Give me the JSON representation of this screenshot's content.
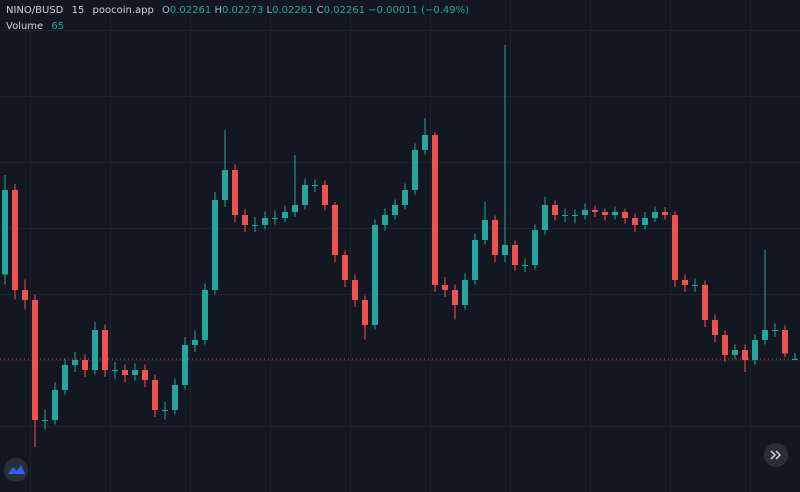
{
  "chart_data": {
    "type": "candlestick",
    "symbol": "NINO/BUSD",
    "interval": 15,
    "source": "poocoin.app",
    "legend": {
      "o_label": "O",
      "o": 0.02261,
      "h_label": "H",
      "h": 0.02273,
      "l_label": "L",
      "l": 0.02261,
      "c_label": "C",
      "c": 0.02261,
      "change": "−0.00011",
      "change_pct": "(−0.49%)"
    },
    "volume_label": "Volume",
    "volume": 65,
    "up_color": "#26a69a",
    "down_color": "#ef5350",
    "ylim": [
      0.01995,
      0.02979
    ],
    "open": [
      0.0243,
      0.02599,
      0.02399,
      0.02379,
      0.02139,
      0.02139,
      0.02199,
      0.02249,
      0.02259,
      0.02239,
      0.02319,
      0.02239,
      0.02239,
      0.02229,
      0.02239,
      0.02219,
      0.02159,
      0.02159,
      0.02209,
      0.02289,
      0.02299,
      0.02399,
      0.02579,
      0.02639,
      0.02549,
      0.02529,
      0.02529,
      0.02543,
      0.02543,
      0.02555,
      0.02569,
      0.02609,
      0.02609,
      0.02569,
      0.02469,
      0.02419,
      0.02379,
      0.02329,
      0.02529,
      0.02549,
      0.02569,
      0.02599,
      0.02679,
      0.02709,
      0.02409,
      0.02399,
      0.02369,
      0.02419,
      0.02499,
      0.02539,
      0.02469,
      0.02489,
      0.02449,
      0.02449,
      0.02519,
      0.02569,
      0.02549,
      0.02549,
      0.02549,
      0.02559,
      0.02555,
      0.02549,
      0.02555,
      0.02543,
      0.02529,
      0.02543,
      0.02555,
      0.02549,
      0.02419,
      0.02409,
      0.02409,
      0.02339,
      0.02309,
      0.02269,
      0.02279,
      0.02259,
      0.02299,
      0.02319,
      0.02319,
      0.02261
    ],
    "high": [
      0.02629,
      0.02611,
      0.0242,
      0.0239,
      0.0216,
      0.02215,
      0.02262,
      0.02275,
      0.0227,
      0.02335,
      0.0233,
      0.02255,
      0.0225,
      0.02252,
      0.0225,
      0.0223,
      0.02175,
      0.02222,
      0.02305,
      0.02318,
      0.02412,
      0.02595,
      0.02719,
      0.0265,
      0.0256,
      0.02545,
      0.02556,
      0.02558,
      0.02568,
      0.02669,
      0.02622,
      0.0262,
      0.02618,
      0.02575,
      0.02478,
      0.0243,
      0.02388,
      0.0254,
      0.02562,
      0.0258,
      0.02612,
      0.02692,
      0.02743,
      0.02715,
      0.02425,
      0.0241,
      0.02432,
      0.02512,
      0.02575,
      0.02548,
      0.02889,
      0.02498,
      0.02462,
      0.0253,
      0.02585,
      0.02578,
      0.02562,
      0.0256,
      0.02572,
      0.02568,
      0.02562,
      0.02566,
      0.02562,
      0.02552,
      0.02555,
      0.02566,
      0.02565,
      0.02556,
      0.0243,
      0.02422,
      0.02418,
      0.0235,
      0.02318,
      0.0229,
      0.0229,
      0.0231,
      0.02479,
      0.02332,
      0.02328,
      0.02273
    ],
    "low": [
      0.0241,
      0.0238,
      0.0236,
      0.02085,
      0.0212,
      0.0213,
      0.0219,
      0.02235,
      0.02225,
      0.0223,
      0.02225,
      0.02222,
      0.02215,
      0.02218,
      0.02205,
      0.02145,
      0.0214,
      0.0215,
      0.022,
      0.02275,
      0.0229,
      0.0239,
      0.02565,
      0.02535,
      0.02515,
      0.02515,
      0.0252,
      0.0253,
      0.02535,
      0.02545,
      0.0256,
      0.02595,
      0.02558,
      0.02455,
      0.02405,
      0.02365,
      0.023,
      0.0232,
      0.02518,
      0.0254,
      0.0256,
      0.0259,
      0.0267,
      0.02395,
      0.02385,
      0.0234,
      0.0236,
      0.0241,
      0.0249,
      0.02455,
      0.02455,
      0.02438,
      0.02435,
      0.0244,
      0.0251,
      0.02538,
      0.02535,
      0.02532,
      0.0254,
      0.02545,
      0.02538,
      0.0254,
      0.02532,
      0.02515,
      0.0252,
      0.02535,
      0.0254,
      0.02405,
      0.02395,
      0.02395,
      0.02325,
      0.02295,
      0.02255,
      0.0226,
      0.02235,
      0.0225,
      0.0229,
      0.02305,
      0.02265,
      0.02261
    ],
    "close": [
      0.02599,
      0.02399,
      0.02379,
      0.02139,
      0.02139,
      0.02199,
      0.02249,
      0.02259,
      0.02239,
      0.02319,
      0.02239,
      0.02239,
      0.02229,
      0.02239,
      0.02219,
      0.02159,
      0.02159,
      0.02209,
      0.02289,
      0.02299,
      0.02399,
      0.02579,
      0.02639,
      0.02549,
      0.02529,
      0.02529,
      0.02543,
      0.02543,
      0.02555,
      0.02569,
      0.02609,
      0.02609,
      0.02569,
      0.02469,
      0.02419,
      0.02379,
      0.02329,
      0.02529,
      0.02549,
      0.02569,
      0.02599,
      0.02679,
      0.02709,
      0.02409,
      0.02399,
      0.02369,
      0.02419,
      0.02499,
      0.02539,
      0.02469,
      0.02489,
      0.02449,
      0.02449,
      0.02519,
      0.02569,
      0.02549,
      0.02549,
      0.02549,
      0.02559,
      0.02555,
      0.02549,
      0.02555,
      0.02543,
      0.02529,
      0.02543,
      0.02555,
      0.02549,
      0.02419,
      0.02409,
      0.02409,
      0.02339,
      0.02309,
      0.02269,
      0.02279,
      0.02259,
      0.02299,
      0.02319,
      0.02319,
      0.02272,
      0.02261
    ]
  }
}
